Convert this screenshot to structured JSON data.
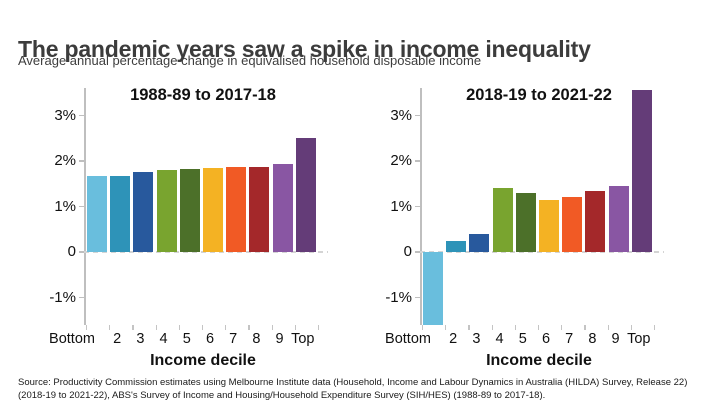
{
  "header": {
    "title": "The pandemic years saw a spike in income inequality",
    "subtitle": "Average annual percentage change in equivalised household disposable income"
  },
  "palette": {
    "bars": [
      "#69BEDD",
      "#2E93B8",
      "#28599D",
      "#79A42F",
      "#4C7029",
      "#F4B223",
      "#F15A25",
      "#A4282A",
      "#8956A3",
      "#643C78"
    ],
    "axis": "#BFBFBF",
    "zero_line": "#D4D4D4",
    "title_text": "#3C3C3C"
  },
  "chart_data": [
    {
      "type": "bar",
      "title": "1988-89 to 2017-18",
      "categories": [
        "Bottom",
        "2",
        "3",
        "4",
        "5",
        "6",
        "7",
        "8",
        "9",
        "Top"
      ],
      "values": [
        1.68,
        1.68,
        1.76,
        1.8,
        1.82,
        1.84,
        1.86,
        1.86,
        1.94,
        2.5
      ],
      "xlabel": "Income decile",
      "ylabel": "",
      "ytick_labels": [
        "3%",
        "2%",
        "1%",
        "0",
        "-1%"
      ],
      "ytick_values": [
        3,
        2,
        1,
        0,
        -1
      ],
      "ylim": [
        -1.6,
        3.6
      ],
      "grid": false,
      "zero_line": "dashed",
      "legend": "none"
    },
    {
      "type": "bar",
      "title": "2018-19 to 2021-22",
      "categories": [
        "Bottom",
        "2",
        "3",
        "4",
        "5",
        "6",
        "7",
        "8",
        "9",
        "Top"
      ],
      "values": [
        -1.6,
        0.24,
        0.4,
        1.4,
        1.3,
        1.15,
        1.2,
        1.35,
        1.45,
        3.55
      ],
      "xlabel": "Income decile",
      "ylabel": "",
      "ytick_labels": [
        "3%",
        "2%",
        "1%",
        "0",
        "-1%"
      ],
      "ytick_values": [
        3,
        2,
        1,
        0,
        -1
      ],
      "ylim": [
        -1.6,
        3.6
      ],
      "grid": false,
      "zero_line": "dashed",
      "legend": "none"
    }
  ],
  "footer": {
    "source_line1": "Source: Productivity Commission estimates using Melbourne Institute data (Household, Income and Labour Dynamics in Australia (HILDA) Survey, Release 22)",
    "source_line2": "(2018-19 to 2021-22), ABS's Survey of Income and Housing/Household Expenditure Survey (SIH/HES) (1988-89 to 2017-18)."
  }
}
